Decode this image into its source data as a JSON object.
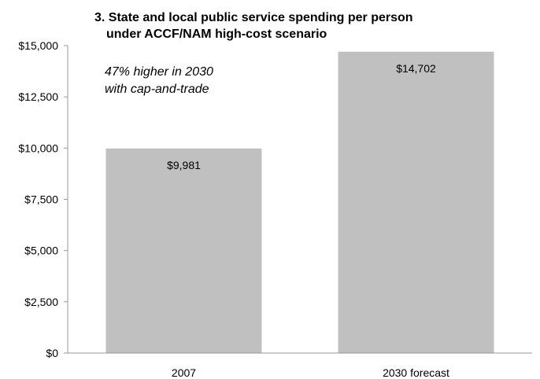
{
  "title": {
    "line1": "3. State and local public service spending per person",
    "line2": "under ACCF/NAM high-cost scenario"
  },
  "annotation": {
    "line1": "47% higher in 2030",
    "line2": "with cap-and-trade"
  },
  "colors": {
    "bar": "#c0c0c0",
    "axis": "#999999",
    "text": "#000000"
  },
  "chart_data": {
    "type": "bar",
    "categories": [
      "2007",
      "2030 forecast"
    ],
    "values": [
      9981,
      14702
    ],
    "data_labels": [
      "$9,981",
      "$14,702"
    ],
    "ylim": [
      0,
      15000
    ],
    "yticks": [
      0,
      2500,
      5000,
      7500,
      10000,
      12500,
      15000
    ],
    "ytick_labels": [
      "$0",
      "$2,500",
      "$5,000",
      "$7,500",
      "$10,000",
      "$12,500",
      "$15,000"
    ],
    "xlabel": "",
    "ylabel": "",
    "grid": false,
    "legend": "none"
  }
}
